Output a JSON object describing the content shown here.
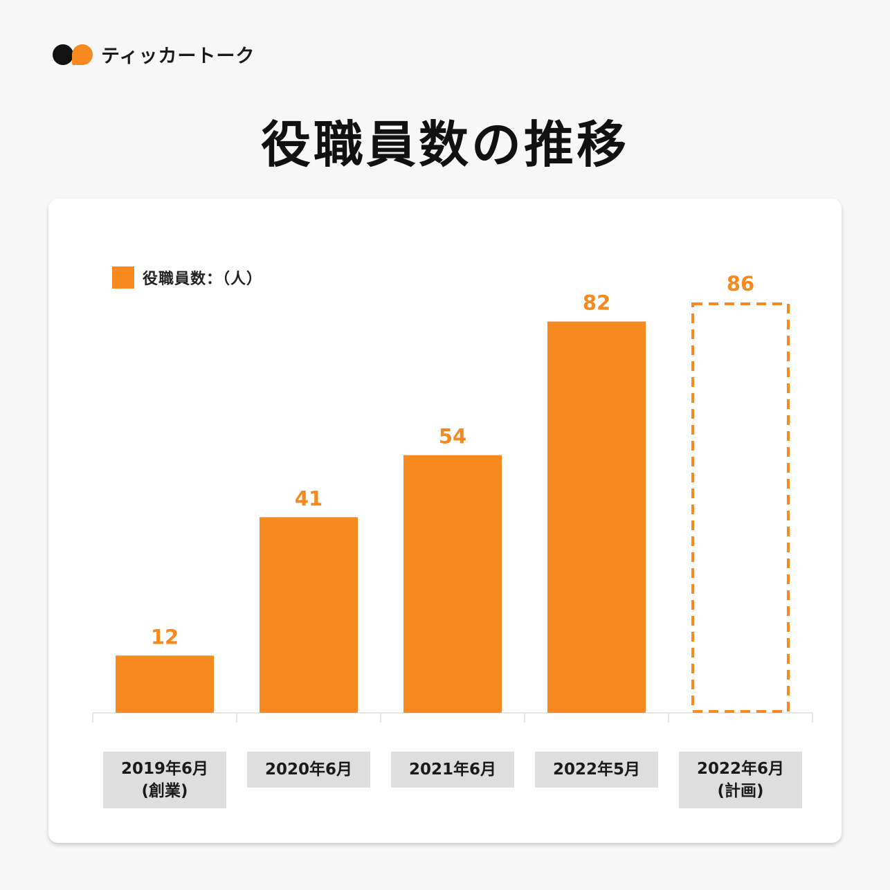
{
  "brand": {
    "name": "ティッカートーク",
    "logo_icon": "speech-bubbles-logo-icon"
  },
  "title": "役職員数の推移",
  "colors": {
    "accent": "#f78a1f",
    "label_bg": "#dedede",
    "text": "#111111"
  },
  "chart_data": {
    "type": "bar",
    "title": "",
    "legend": {
      "label": "役職員数：（人）",
      "position": "top-left"
    },
    "categories": [
      "2019年6月\n(創業)",
      "2020年6月",
      "2021年6月",
      "2022年5月",
      "2022年6月\n(計画)"
    ],
    "series": [
      {
        "name": "役職員数：（人）",
        "values": [
          12,
          41,
          54,
          82,
          86
        ]
      }
    ],
    "planned": [
      false,
      false,
      false,
      false,
      true
    ],
    "xlabel": "",
    "ylabel": "",
    "ylim": [
      0,
      86
    ],
    "grid": false
  }
}
